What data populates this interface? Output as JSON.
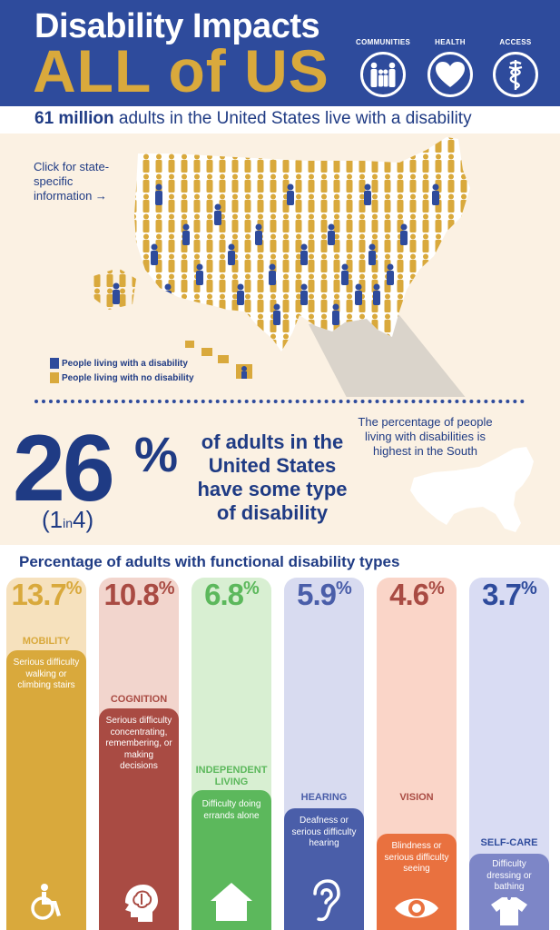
{
  "header": {
    "title_line1": "Disability Impacts",
    "title_line2": "ALL of US",
    "badges": [
      {
        "label": "COMMUNITIES",
        "icon": "family-icon"
      },
      {
        "label": "HEALTH",
        "icon": "heart-icon"
      },
      {
        "label": "ACCESS",
        "icon": "caduceus-icon"
      }
    ]
  },
  "intro": {
    "bold": "61 million",
    "rest": " adults in the United States live with a disability"
  },
  "map": {
    "click_note": "Click for state-specific information →",
    "legend": [
      {
        "label": "People living with a disability",
        "color": "#2e4b9c"
      },
      {
        "label": "People living with no disability",
        "color": "#d9a93c"
      }
    ],
    "south_note": "The percentage of people living with disabilities is highest in the South"
  },
  "headline": {
    "number": "26",
    "percent_sign": "%",
    "one_in_left": "(1",
    "one_in_mid": "in",
    "one_in_right": "4)",
    "statement": "of adults in the United States have some type of disability"
  },
  "functional": {
    "title": "Percentage of adults with functional disability types",
    "types": [
      {
        "value": "13.7",
        "sign": "%",
        "name": "MOBILITY",
        "desc": "Serious difficulty walking or climbing stairs",
        "color": "#d9a93c",
        "icon": "wheelchair-icon",
        "fraction": 0.137
      },
      {
        "value": "10.8",
        "sign": "%",
        "name": "COGNITION",
        "desc": "Serious difficulty concentrating, remembering, or making decisions",
        "color": "#a94b43",
        "icon": "brain-head-icon",
        "fraction": 0.108
      },
      {
        "value": "6.8",
        "sign": "%",
        "name": "INDEPENDENT LIVING",
        "desc": "Difficulty doing errands alone",
        "color": "#5cb85c",
        "icon": "house-icon",
        "fraction": 0.068
      },
      {
        "value": "5.9",
        "sign": "%",
        "name": "HEARING",
        "desc": "Deafness or serious difficulty hearing",
        "color": "#4a5ea9",
        "icon": "ear-icon",
        "fraction": 0.059
      },
      {
        "value": "4.6",
        "sign": "%",
        "name": "VISION",
        "desc": "Blindness or serious difficulty seeing",
        "color": "#e9713f",
        "icon": "eye-icon",
        "fraction": 0.046
      },
      {
        "value": "3.7",
        "sign": "%",
        "name": "SELF-CARE",
        "desc": "Difficulty dressing or bathing",
        "color": "#7d86c7",
        "icon": "shirt-icon",
        "fraction": 0.037
      }
    ]
  }
}
